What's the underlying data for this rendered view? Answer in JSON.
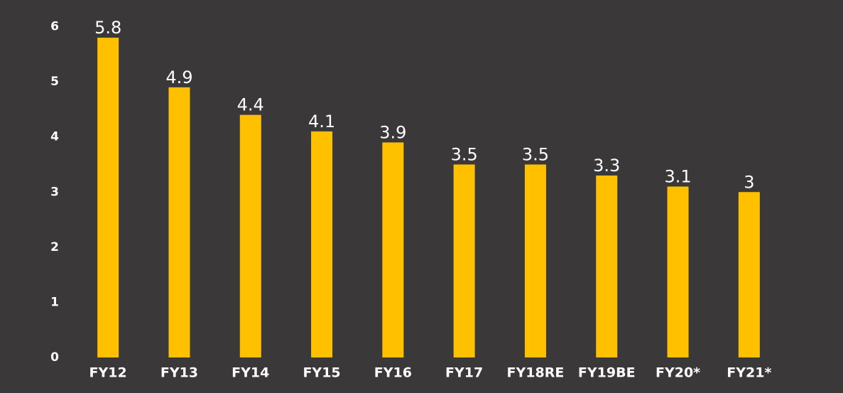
{
  "chart_data": {
    "type": "bar",
    "categories": [
      "FY12",
      "FY13",
      "FY14",
      "FY15",
      "FY16",
      "FY17",
      "FY18RE",
      "FY19BE",
      "FY20*",
      "FY21*"
    ],
    "values": [
      5.8,
      4.9,
      4.4,
      4.1,
      3.9,
      3.5,
      3.5,
      3.3,
      3.1,
      3
    ],
    "color": "#ffc000",
    "ylim": [
      0,
      6
    ],
    "yticks": [
      0,
      1,
      2,
      3,
      4,
      5,
      6
    ],
    "grid": false
  }
}
